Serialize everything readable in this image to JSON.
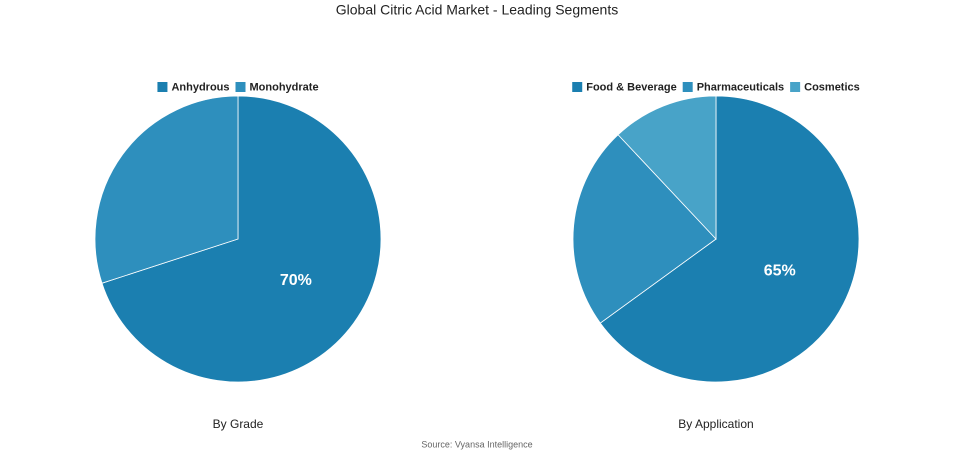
{
  "title": "Global Citric Acid Market - Leading Segments",
  "source": "Source: Vyansa Intelligence",
  "chart_data": [
    {
      "type": "pie",
      "title": "By Grade",
      "categories": [
        "Anhydrous",
        "Monohydrate"
      ],
      "values": [
        70,
        30
      ],
      "value_labels": [
        "70%",
        null
      ],
      "colors": [
        "#1b7fb0",
        "#2e8fbd"
      ]
    },
    {
      "type": "pie",
      "title": "By Application",
      "categories": [
        "Food & Beverage",
        "Pharmaceuticals",
        "Cosmetics"
      ],
      "values": [
        65,
        23,
        12
      ],
      "value_labels": [
        "65%",
        null,
        null
      ],
      "colors": [
        "#1b7fb0",
        "#2e8fbd",
        "#48a3c8"
      ]
    }
  ]
}
